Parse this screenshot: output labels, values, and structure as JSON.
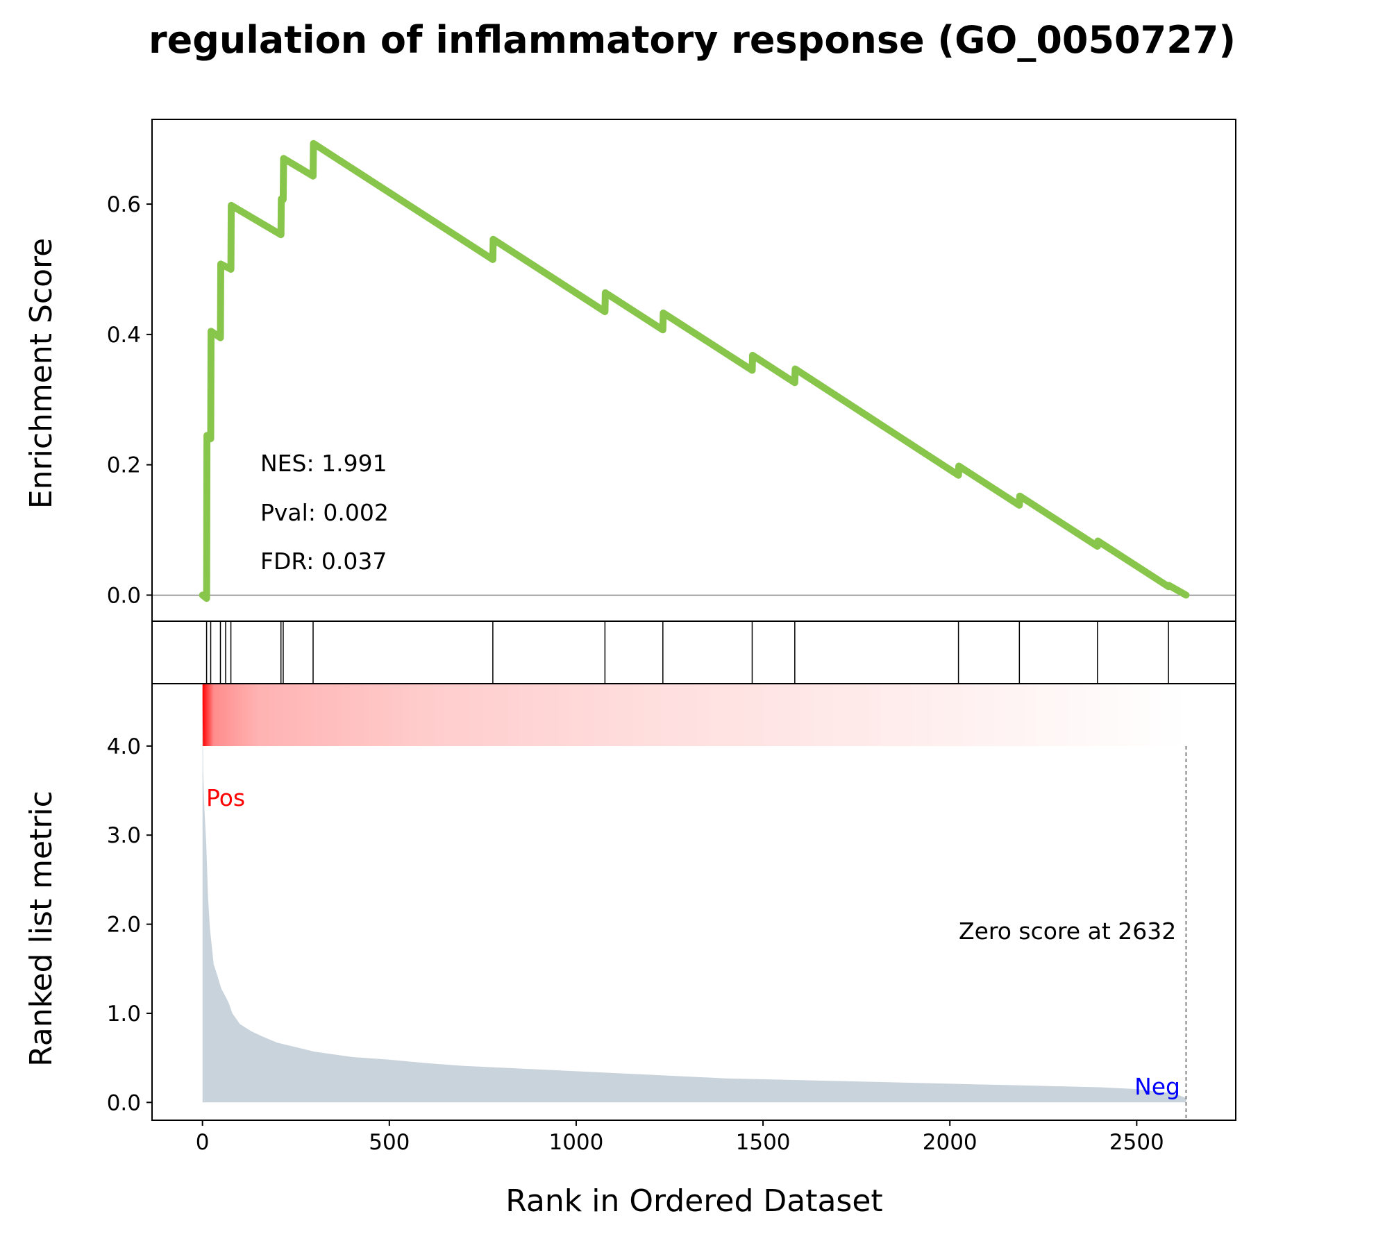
{
  "figure": {
    "title": "regulation of inflammatory response (GO_0050727)",
    "colors": {
      "es_line": "#88c54b",
      "metric_fill": "#c9d3dc",
      "pos_label": "#ff0000",
      "neg_label": "#0000ff",
      "heat_strong": "#ff0000",
      "axis": "#000000",
      "zero_line": "#808080"
    }
  },
  "chart_data": [
    {
      "type": "line",
      "title": "",
      "xlabel": "",
      "ylabel": "Enrichment Score",
      "xlim": [
        -135,
        2765
      ],
      "ylim": [
        -0.04,
        0.73
      ],
      "yticks": [
        0.0,
        0.2,
        0.4,
        0.6
      ],
      "ytick_labels": [
        "0.0",
        "0.2",
        "0.4",
        "0.6"
      ],
      "grid": false,
      "zero_line": 0.0,
      "series": [
        {
          "x": [
            0,
            11,
            12,
            22,
            23,
            48,
            49,
            62,
            63,
            76,
            77,
            210,
            211,
            216,
            217,
            296,
            297,
            777,
            778,
            1077,
            1078,
            1232,
            1233,
            1471,
            1472,
            1585,
            1586,
            2023,
            2024,
            2186,
            2187,
            2395,
            2396,
            2585,
            2586,
            2632
          ],
          "y": [
            0.0,
            -0.005,
            0.245,
            0.24,
            0.405,
            0.395,
            0.508,
            0.504,
            0.504,
            0.5,
            0.598,
            0.553,
            0.608,
            0.607,
            0.67,
            0.643,
            0.693,
            0.515,
            0.546,
            0.435,
            0.464,
            0.407,
            0.433,
            0.345,
            0.368,
            0.326,
            0.347,
            0.184,
            0.198,
            0.138,
            0.152,
            0.075,
            0.083,
            0.013,
            0.015,
            0.0
          ]
        }
      ],
      "annotations": [
        "NES: 1.991",
        "Pval: 0.002",
        "FDR: 0.037"
      ]
    },
    {
      "type": "hits",
      "hit_ranks": [
        11,
        22,
        48,
        62,
        76,
        210,
        216,
        296,
        777,
        1077,
        1232,
        1471,
        1585,
        2023,
        2186,
        2395,
        2585
      ]
    },
    {
      "type": "heatmap",
      "x_range": [
        0,
        2632
      ],
      "gradient_stops": [
        {
          "rank": 0,
          "intensity": 1.0
        },
        {
          "rank": 30,
          "intensity": 0.45
        },
        {
          "rank": 150,
          "intensity": 0.3
        },
        {
          "rank": 600,
          "intensity": 0.2
        },
        {
          "rank": 1200,
          "intensity": 0.13
        },
        {
          "rank": 1800,
          "intensity": 0.08
        },
        {
          "rank": 2632,
          "intensity": 0.0
        }
      ]
    },
    {
      "type": "area",
      "title": "",
      "xlabel": "Rank in Ordered Dataset",
      "ylabel": "Ranked list metric",
      "xlim": [
        -135,
        2765
      ],
      "ylim": [
        -0.2,
        4.7
      ],
      "xticks": [
        0,
        500,
        1000,
        1500,
        2000,
        2500
      ],
      "xtick_labels": [
        "0",
        "500",
        "1000",
        "1500",
        "2000",
        "2500"
      ],
      "yticks": [
        0.0,
        1.0,
        2.0,
        3.0,
        4.0
      ],
      "ytick_labels": [
        "0.0",
        "1.0",
        "2.0",
        "3.0",
        "4.0"
      ],
      "grid": false,
      "series": [
        {
          "x": [
            0,
            2,
            5,
            10,
            15,
            20,
            30,
            40,
            50,
            60,
            70,
            80,
            100,
            130,
            160,
            200,
            260,
            300,
            400,
            500,
            600,
            700,
            800,
            1000,
            1200,
            1400,
            1600,
            1800,
            2000,
            2200,
            2400,
            2500,
            2600,
            2632
          ],
          "y": [
            4.5,
            3.7,
            3.3,
            2.9,
            2.3,
            1.95,
            1.55,
            1.42,
            1.28,
            1.2,
            1.12,
            1.0,
            0.88,
            0.8,
            0.74,
            0.67,
            0.61,
            0.57,
            0.51,
            0.48,
            0.44,
            0.41,
            0.39,
            0.35,
            0.31,
            0.27,
            0.25,
            0.23,
            0.21,
            0.19,
            0.17,
            0.15,
            0.1,
            0.05
          ]
        }
      ],
      "labels": {
        "pos": "Pos",
        "neg": "Neg",
        "zero_score": "Zero score at 2632"
      },
      "zero_score_rank": 2632
    }
  ]
}
